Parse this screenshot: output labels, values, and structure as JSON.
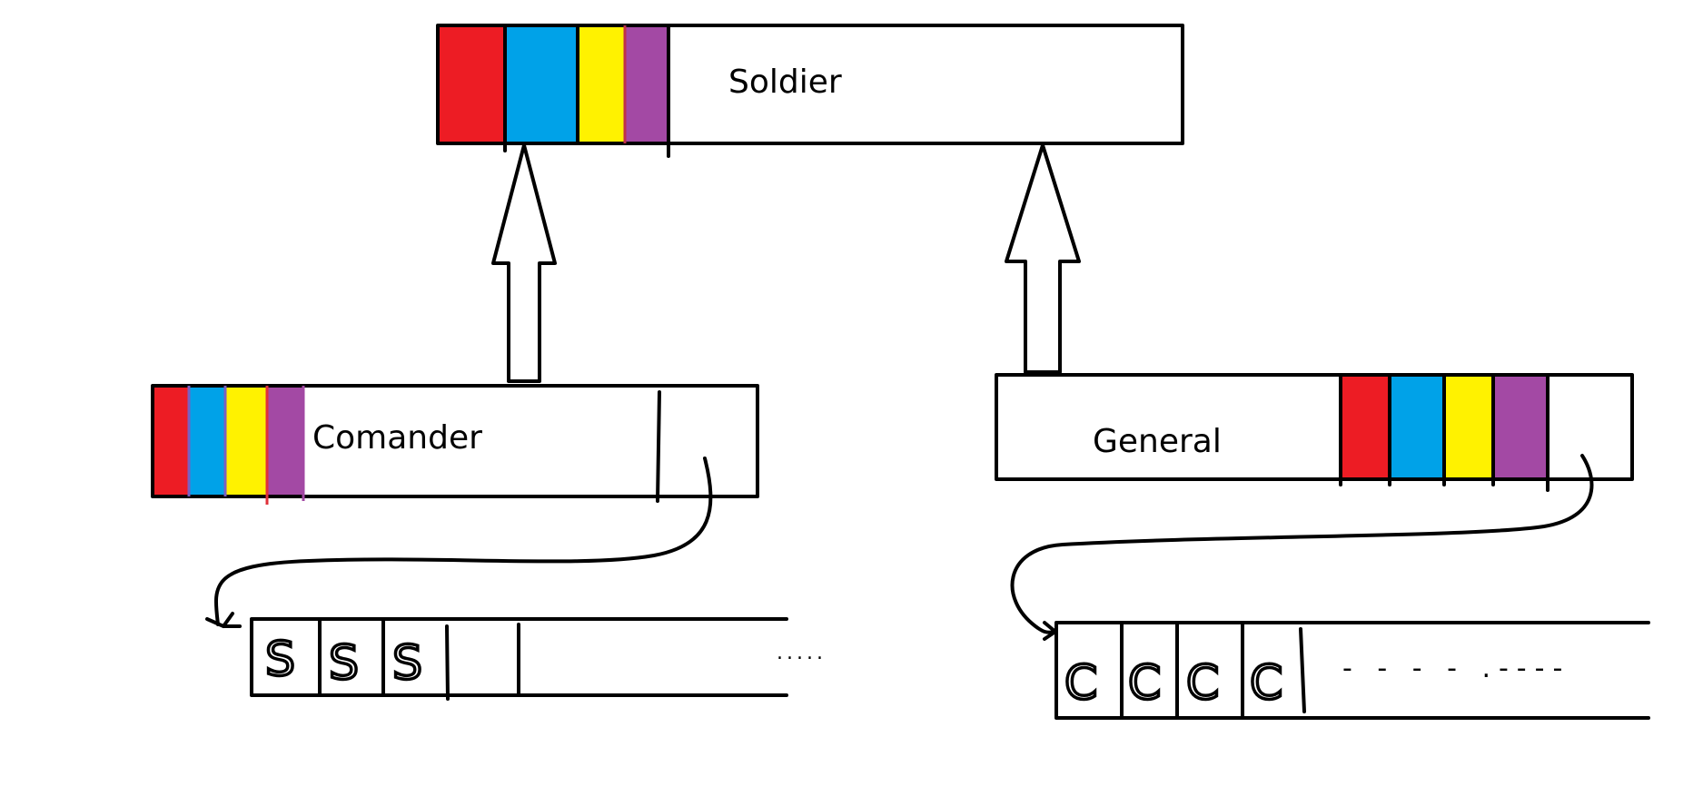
{
  "colors": {
    "red": "#ed1c24",
    "blue": "#00a2e8",
    "yellow": "#fff200",
    "purple": "#a349a4"
  },
  "boxes": {
    "soldier": {
      "label": "Soldier"
    },
    "commander": {
      "label": "Comander"
    },
    "general": {
      "label": "General"
    }
  },
  "arrays": {
    "commander_array": {
      "cells": [
        "S",
        "S",
        "S"
      ],
      "ellipsis": "....."
    },
    "general_array": {
      "cells": [
        "C",
        "C",
        "C",
        "C"
      ],
      "ellipsis": "- - - - .----"
    }
  }
}
